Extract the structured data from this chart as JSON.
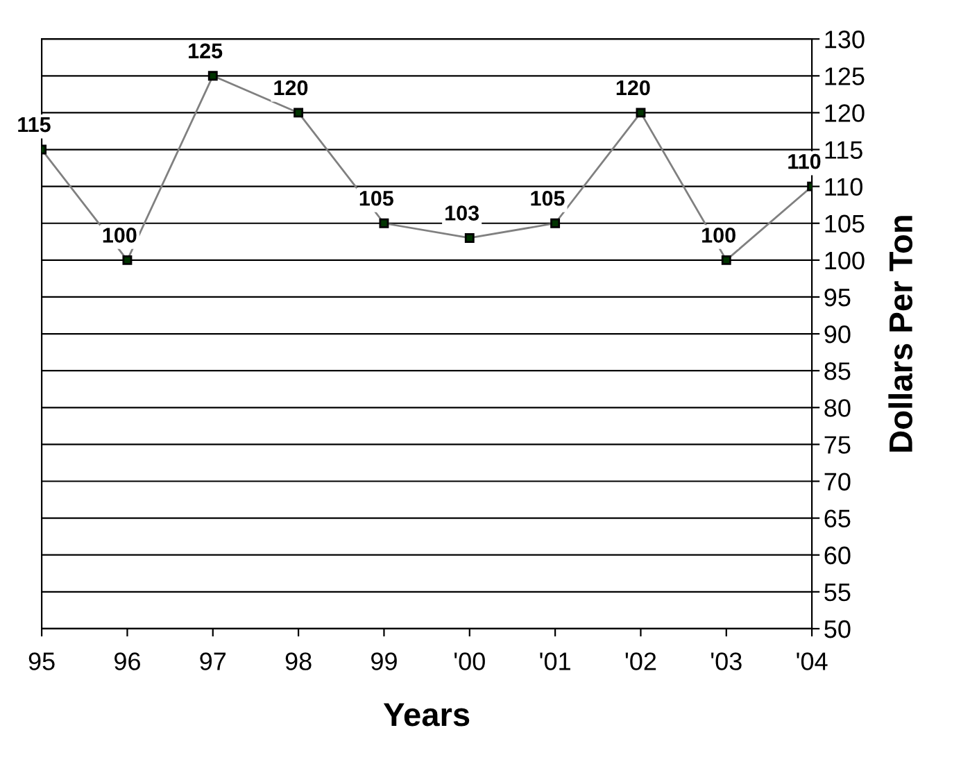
{
  "chart_data": {
    "type": "line",
    "categories": [
      "95",
      "96",
      "97",
      "98",
      "99",
      "'00",
      "'01",
      "'02",
      "'03",
      "'04"
    ],
    "series": [
      {
        "color": "#808080",
        "values": [
          115,
          100,
          125,
          120,
          105,
          103,
          105,
          120,
          100,
          110
        ]
      }
    ],
    "xlabel": "Years",
    "ylabel": "Dollars Per Ton",
    "ylim": [
      50,
      130
    ],
    "yticks": [
      50,
      55,
      60,
      65,
      70,
      75,
      80,
      85,
      90,
      95,
      100,
      105,
      110,
      115,
      120,
      125,
      130
    ],
    "grid": "y",
    "marker": "square",
    "line_style": "solid",
    "data_labels": true,
    "legend": false
  }
}
